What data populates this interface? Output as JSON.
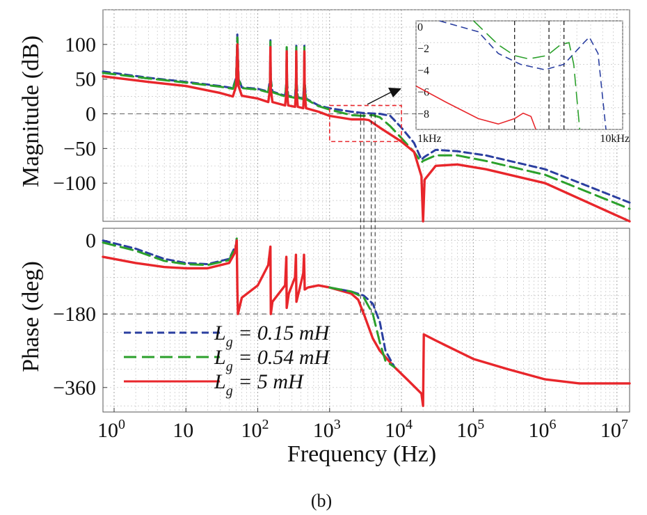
{
  "caption": "(b)",
  "chart_data": {
    "type": "line",
    "x_scale": "log",
    "xlabel": "Frequency (Hz)",
    "xlim": [
      0.7,
      15000000
    ],
    "x_ticks": [
      {
        "label": "10",
        "sup": "0",
        "value": 1
      },
      {
        "label": "10",
        "sup": "",
        "value": 10
      },
      {
        "label": "10",
        "sup": "2",
        "value": 100
      },
      {
        "label": "10",
        "sup": "3",
        "value": 1000
      },
      {
        "label": "10",
        "sup": "4",
        "value": 10000
      },
      {
        "label": "10",
        "sup": "5",
        "value": 100000
      },
      {
        "label": "10",
        "sup": "6",
        "value": 1000000
      },
      {
        "label": "10",
        "sup": "7",
        "value": 10000000
      }
    ],
    "grid": true,
    "legend": {
      "placement": "bottom-left of phase panel",
      "entries": [
        {
          "prefix": "L",
          "sub": "g",
          "text": " = 0.15 mH",
          "color": "#2B3FA0",
          "style": "dashed"
        },
        {
          "prefix": "L",
          "sub": "g",
          "text": " = 0.54 mH",
          "color": "#2BA02B",
          "style": "long-dash"
        },
        {
          "prefix": "L",
          "sub": "g",
          "text": " = 5 mH",
          "color": "#E8262B",
          "style": "solid"
        }
      ]
    },
    "magnitude": {
      "ylabel": "Magnitude (dB)",
      "ylim": [
        -155,
        150
      ],
      "y_ticks": [
        100,
        50,
        0,
        -50,
        -100
      ],
      "y_tick_labels": [
        "100",
        "50",
        "0",
        "−50",
        "−100"
      ],
      "reference_line": 0,
      "series": [
        {
          "name": "0.15 mH",
          "color": "#2B3FA0",
          "points": [
            [
              0.7,
              61
            ],
            [
              3,
              52
            ],
            [
              10,
              46
            ],
            [
              30,
              40
            ],
            [
              45,
              37
            ],
            [
              50,
              52
            ],
            [
              52,
              115
            ],
            [
              54,
              52
            ],
            [
              60,
              38
            ],
            [
              100,
              36
            ],
            [
              140,
              32
            ],
            [
              148,
              50
            ],
            [
              150,
              106
            ],
            [
              152,
              50
            ],
            [
              160,
              32
            ],
            [
              240,
              26
            ],
            [
              250,
              45
            ],
            [
              253,
              98
            ],
            [
              256,
              45
            ],
            [
              265,
              26
            ],
            [
              330,
              24
            ],
            [
              340,
              45
            ],
            [
              344,
              98
            ],
            [
              348,
              45
            ],
            [
              360,
              24
            ],
            [
              430,
              22
            ],
            [
              440,
              45
            ],
            [
              445,
              98
            ],
            [
              450,
              45
            ],
            [
              470,
              22
            ],
            [
              700,
              12
            ],
            [
              1000,
              8
            ],
            [
              2000,
              3
            ],
            [
              3000,
              1
            ],
            [
              5000,
              0
            ],
            [
              7000,
              -3
            ],
            [
              10000,
              -20
            ],
            [
              15000,
              -42
            ],
            [
              19000,
              -66
            ],
            [
              20000,
              -64
            ],
            [
              21000,
              -62
            ],
            [
              30000,
              -52
            ],
            [
              60000,
              -54
            ],
            [
              150000,
              -60
            ],
            [
              1000000,
              -80
            ],
            [
              15000000,
              -128
            ]
          ]
        },
        {
          "name": "0.54 mH",
          "color": "#2BA02B",
          "points": [
            [
              0.7,
              59
            ],
            [
              3,
              51
            ],
            [
              10,
              45
            ],
            [
              30,
              39
            ],
            [
              45,
              36
            ],
            [
              50,
              50
            ],
            [
              52,
              110
            ],
            [
              54,
              50
            ],
            [
              60,
              37
            ],
            [
              100,
              35
            ],
            [
              140,
              31
            ],
            [
              148,
              48
            ],
            [
              150,
              104
            ],
            [
              152,
              48
            ],
            [
              160,
              31
            ],
            [
              240,
              25
            ],
            [
              250,
              44
            ],
            [
              253,
              96
            ],
            [
              256,
              44
            ],
            [
              265,
              25
            ],
            [
              330,
              23
            ],
            [
              340,
              44
            ],
            [
              344,
              96
            ],
            [
              348,
              44
            ],
            [
              360,
              23
            ],
            [
              430,
              21
            ],
            [
              440,
              44
            ],
            [
              445,
              96
            ],
            [
              450,
              44
            ],
            [
              470,
              21
            ],
            [
              700,
              11
            ],
            [
              1000,
              6
            ],
            [
              2000,
              -2
            ],
            [
              3000,
              -3
            ],
            [
              4000,
              -2
            ],
            [
              5000,
              -5
            ],
            [
              7000,
              -18
            ],
            [
              10000,
              -35
            ],
            [
              15000,
              -55
            ],
            [
              19000,
              -70
            ],
            [
              20000,
              -68
            ],
            [
              21000,
              -67
            ],
            [
              30000,
              -60
            ],
            [
              60000,
              -60
            ],
            [
              150000,
              -68
            ],
            [
              1000000,
              -88
            ],
            [
              15000000,
              -137
            ]
          ]
        },
        {
          "name": "5 mH",
          "color": "#E8262B",
          "points": [
            [
              0.7,
              54
            ],
            [
              3,
              46
            ],
            [
              10,
              40
            ],
            [
              30,
              30
            ],
            [
              45,
              25
            ],
            [
              50,
              40
            ],
            [
              52,
              100
            ],
            [
              54,
              40
            ],
            [
              60,
              26
            ],
            [
              100,
              22
            ],
            [
              140,
              17
            ],
            [
              148,
              35
            ],
            [
              150,
              96
            ],
            [
              152,
              35
            ],
            [
              160,
              17
            ],
            [
              240,
              12
            ],
            [
              250,
              30
            ],
            [
              253,
              90
            ],
            [
              256,
              30
            ],
            [
              265,
              12
            ],
            [
              330,
              10
            ],
            [
              340,
              30
            ],
            [
              344,
              90
            ],
            [
              348,
              30
            ],
            [
              360,
              10
            ],
            [
              430,
              8
            ],
            [
              440,
              30
            ],
            [
              445,
              90
            ],
            [
              450,
              30
            ],
            [
              470,
              8
            ],
            [
              700,
              3
            ],
            [
              1000,
              -3
            ],
            [
              2000,
              -8
            ],
            [
              3000,
              -8
            ],
            [
              3500,
              -9
            ],
            [
              5000,
              -20
            ],
            [
              10000,
              -40
            ],
            [
              15000,
              -55
            ],
            [
              19000,
              -90
            ],
            [
              20000,
              -155
            ],
            [
              21000,
              -95
            ],
            [
              30000,
              -75
            ],
            [
              60000,
              -73
            ],
            [
              150000,
              -80
            ],
            [
              1000000,
              -100
            ],
            [
              15000000,
              -155
            ]
          ]
        }
      ]
    },
    "phase": {
      "ylabel": "Phase (deg)",
      "ylim": [
        -420,
        30
      ],
      "y_ticks": [
        0,
        -180,
        -360
      ],
      "y_tick_labels": [
        "0",
        "−180",
        "−360"
      ],
      "reference_line": -180,
      "series": [
        {
          "name": "0.15 mH",
          "color": "#2B3FA0",
          "points": [
            [
              0.7,
              0
            ],
            [
              2,
              -20
            ],
            [
              5,
              -45
            ],
            [
              10,
              -55
            ],
            [
              20,
              -58
            ],
            [
              40,
              -45
            ],
            [
              50,
              -10
            ],
            [
              51,
              10
            ]
          ]
        },
        {
          "name": "0.54 mH",
          "color": "#2BA02B",
          "points": [
            [
              0.7,
              -5
            ],
            [
              2,
              -25
            ],
            [
              5,
              -50
            ],
            [
              10,
              -58
            ],
            [
              20,
              -60
            ],
            [
              40,
              -48
            ],
            [
              50,
              -12
            ],
            [
              51,
              5
            ]
          ]
        },
        {
          "name": "5 mH",
          "color": "#E8262B",
          "points": [
            [
              0.7,
              -40
            ],
            [
              2,
              -55
            ],
            [
              5,
              -65
            ],
            [
              10,
              -68
            ],
            [
              20,
              -68
            ],
            [
              40,
              -55
            ],
            [
              48,
              -30
            ],
            [
              51,
              0
            ],
            [
              52,
              -120
            ],
            [
              53,
              -180
            ],
            [
              60,
              -140
            ],
            [
              100,
              -110
            ],
            [
              140,
              -60
            ],
            [
              150,
              -15
            ],
            [
              152,
              -180
            ],
            [
              160,
              -150
            ],
            [
              240,
              -110
            ],
            [
              250,
              -40
            ],
            [
              253,
              -165
            ],
            [
              270,
              -130
            ],
            [
              330,
              -90
            ],
            [
              340,
              -35
            ],
            [
              345,
              -150
            ],
            [
              380,
              -120
            ],
            [
              430,
              -80
            ],
            [
              440,
              -35
            ],
            [
              450,
              -120
            ],
            [
              500,
              -115
            ],
            [
              700,
              -110
            ],
            [
              1000,
              -115
            ],
            [
              2000,
              -130
            ],
            [
              2500,
              -145
            ],
            [
              3000,
              -180
            ],
            [
              4000,
              -240
            ],
            [
              5000,
              -270
            ],
            [
              8000,
              -310
            ],
            [
              12000,
              -340
            ],
            [
              19000,
              -375
            ],
            [
              20000,
              -405
            ],
            [
              20500,
              -230
            ],
            [
              30000,
              -245
            ],
            [
              100000,
              -290
            ],
            [
              300000,
              -315
            ],
            [
              1000000,
              -340
            ],
            [
              3000000,
              -350
            ],
            [
              15000000,
              -350
            ]
          ]
        },
        {
          "name": "0.15 mH",
          "color": "#2B3FA0",
          "points": [
            [
              1000,
              -115
            ],
            [
              2000,
              -125
            ],
            [
              3000,
              -135
            ],
            [
              4000,
              -155
            ],
            [
              5000,
              -200
            ],
            [
              6000,
              -270
            ],
            [
              8000,
              -310
            ]
          ]
        },
        {
          "name": "0.54 mH",
          "color": "#2BA02B",
          "points": [
            [
              1000,
              -115
            ],
            [
              2000,
              -125
            ],
            [
              3000,
              -140
            ],
            [
              4000,
              -180
            ],
            [
              5000,
              -250
            ],
            [
              6000,
              -295
            ],
            [
              8000,
              -310
            ]
          ]
        }
      ]
    },
    "inset": {
      "x_tick_labels": [
        "1kHz",
        "10kHz"
      ],
      "y_tick_labels": [
        "0",
        "−2",
        "−4",
        "−6",
        "−8"
      ],
      "xlim": [
        1000,
        10000
      ],
      "ylim": [
        -10,
        0
      ],
      "series": [
        {
          "name": "0.15 mH",
          "color": "#2B3FA0",
          "points": [
            [
              1300,
              0
            ],
            [
              2000,
              -1
            ],
            [
              2500,
              -3
            ],
            [
              3200,
              -4
            ],
            [
              4200,
              -4.5
            ],
            [
              5200,
              -4
            ],
            [
              6500,
              -2
            ],
            [
              6900,
              -1.5
            ],
            [
              7600,
              -3
            ],
            [
              8300,
              -10
            ]
          ]
        },
        {
          "name": "0.54 mH",
          "color": "#2BA02B",
          "points": [
            [
              1900,
              0
            ],
            [
              2500,
              -2.2
            ],
            [
              3000,
              -3.2
            ],
            [
              3500,
              -3.5
            ],
            [
              4300,
              -3.2
            ],
            [
              5000,
              -2.2
            ],
            [
              5500,
              -2.0
            ],
            [
              5800,
              -4
            ],
            [
              6200,
              -10
            ]
          ]
        },
        {
          "name": "5 mH",
          "color": "#E8262B",
          "points": [
            [
              1000,
              -6
            ],
            [
              1400,
              -7.5
            ],
            [
              2000,
              -9
            ],
            [
              2500,
              -9.5
            ],
            [
              3000,
              -9
            ],
            [
              3300,
              -8.5
            ],
            [
              3600,
              -8.8
            ],
            [
              3800,
              -10
            ]
          ]
        }
      ],
      "marker_lines": [
        3000,
        4400,
        5200
      ]
    },
    "marker_frequencies": [
      2700,
      3000,
      3800,
      4300
    ]
  }
}
